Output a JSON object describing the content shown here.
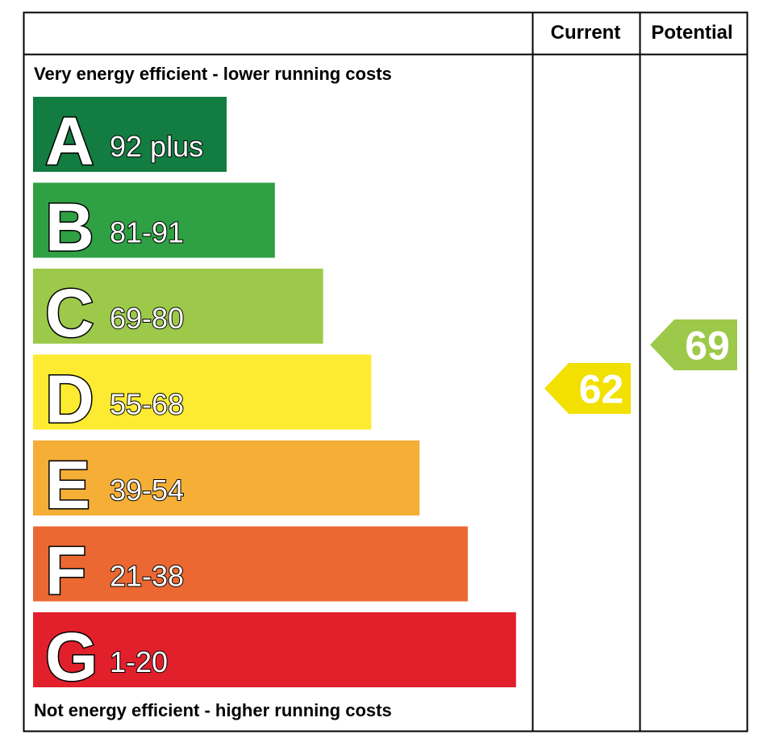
{
  "chart_data": {
    "type": "bar",
    "header": {
      "current": "Current",
      "potential": "Potential"
    },
    "top_label": "Very energy efficient - lower running costs",
    "bottom_label": "Not energy efficient - higher running costs",
    "bands": [
      {
        "letter": "A",
        "range": "92 plus",
        "color": "#127c41"
      },
      {
        "letter": "B",
        "range": "81-91",
        "color": "#2fa043"
      },
      {
        "letter": "C",
        "range": "69-80",
        "color": "#9dc94a"
      },
      {
        "letter": "D",
        "range": "55-68",
        "color": "#fdeb31"
      },
      {
        "letter": "E",
        "range": "39-54",
        "color": "#f5ae36"
      },
      {
        "letter": "F",
        "range": "21-38",
        "color": "#eb6832"
      },
      {
        "letter": "G",
        "range": "1-20",
        "color": "#e1202c"
      }
    ],
    "current": {
      "value": 62,
      "band": "D",
      "color": "#f2e000"
    },
    "potential": {
      "value": 69,
      "band": "C",
      "color": "#9dc94a"
    }
  }
}
